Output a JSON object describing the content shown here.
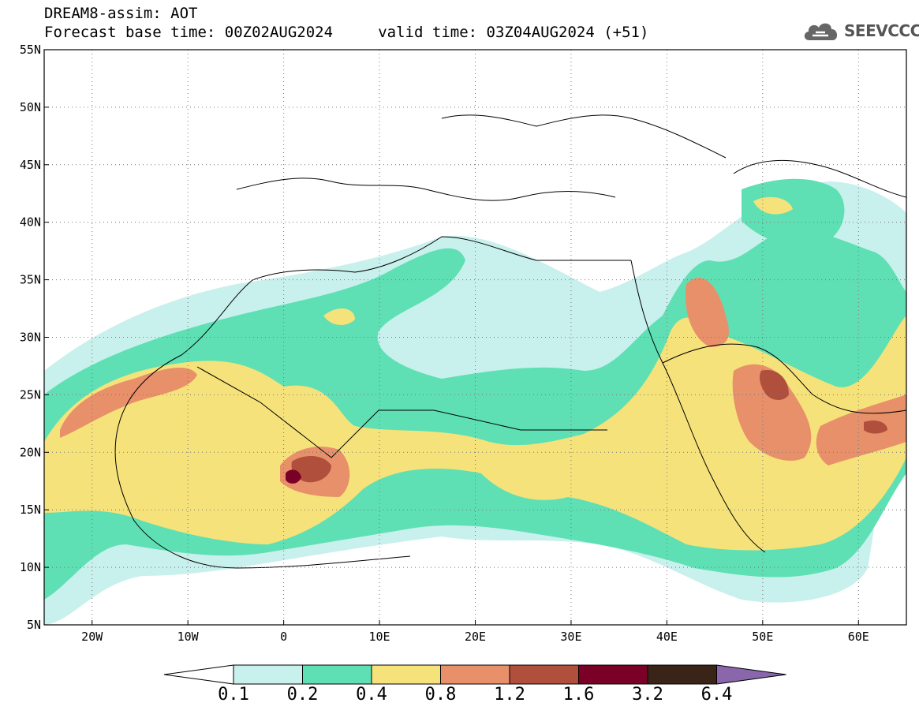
{
  "header": {
    "title_line1": "DREAM8-assim: AOT",
    "title_line2": "Forecast base time: 00Z02AUG2024     valid time: 03Z04AUG2024 (+51)",
    "logo_text": "SEEVCCC",
    "logo_icon": "cloud-icon"
  },
  "map": {
    "lon_range": [
      -25,
      65
    ],
    "lat_range": [
      5,
      55
    ],
    "lat_ticks": [
      "5N",
      "10N",
      "15N",
      "20N",
      "25N",
      "30N",
      "35N",
      "40N",
      "45N",
      "50N",
      "55N"
    ],
    "lon_ticks": [
      "20W",
      "10W",
      "0",
      "10E",
      "20E",
      "30E",
      "40E",
      "50E",
      "60E"
    ],
    "grid": true
  },
  "legend": {
    "labels": [
      "0.1",
      "0.2",
      "0.4",
      "0.8",
      "1.2",
      "1.6",
      "3.2",
      "6.4"
    ],
    "colors": [
      "#ffffff",
      "#c8f0ec",
      "#5ee0b4",
      "#f6e27a",
      "#e8906a",
      "#b0503c",
      "#7a0028",
      "#3a2418",
      "#8a66aa"
    ]
  }
}
